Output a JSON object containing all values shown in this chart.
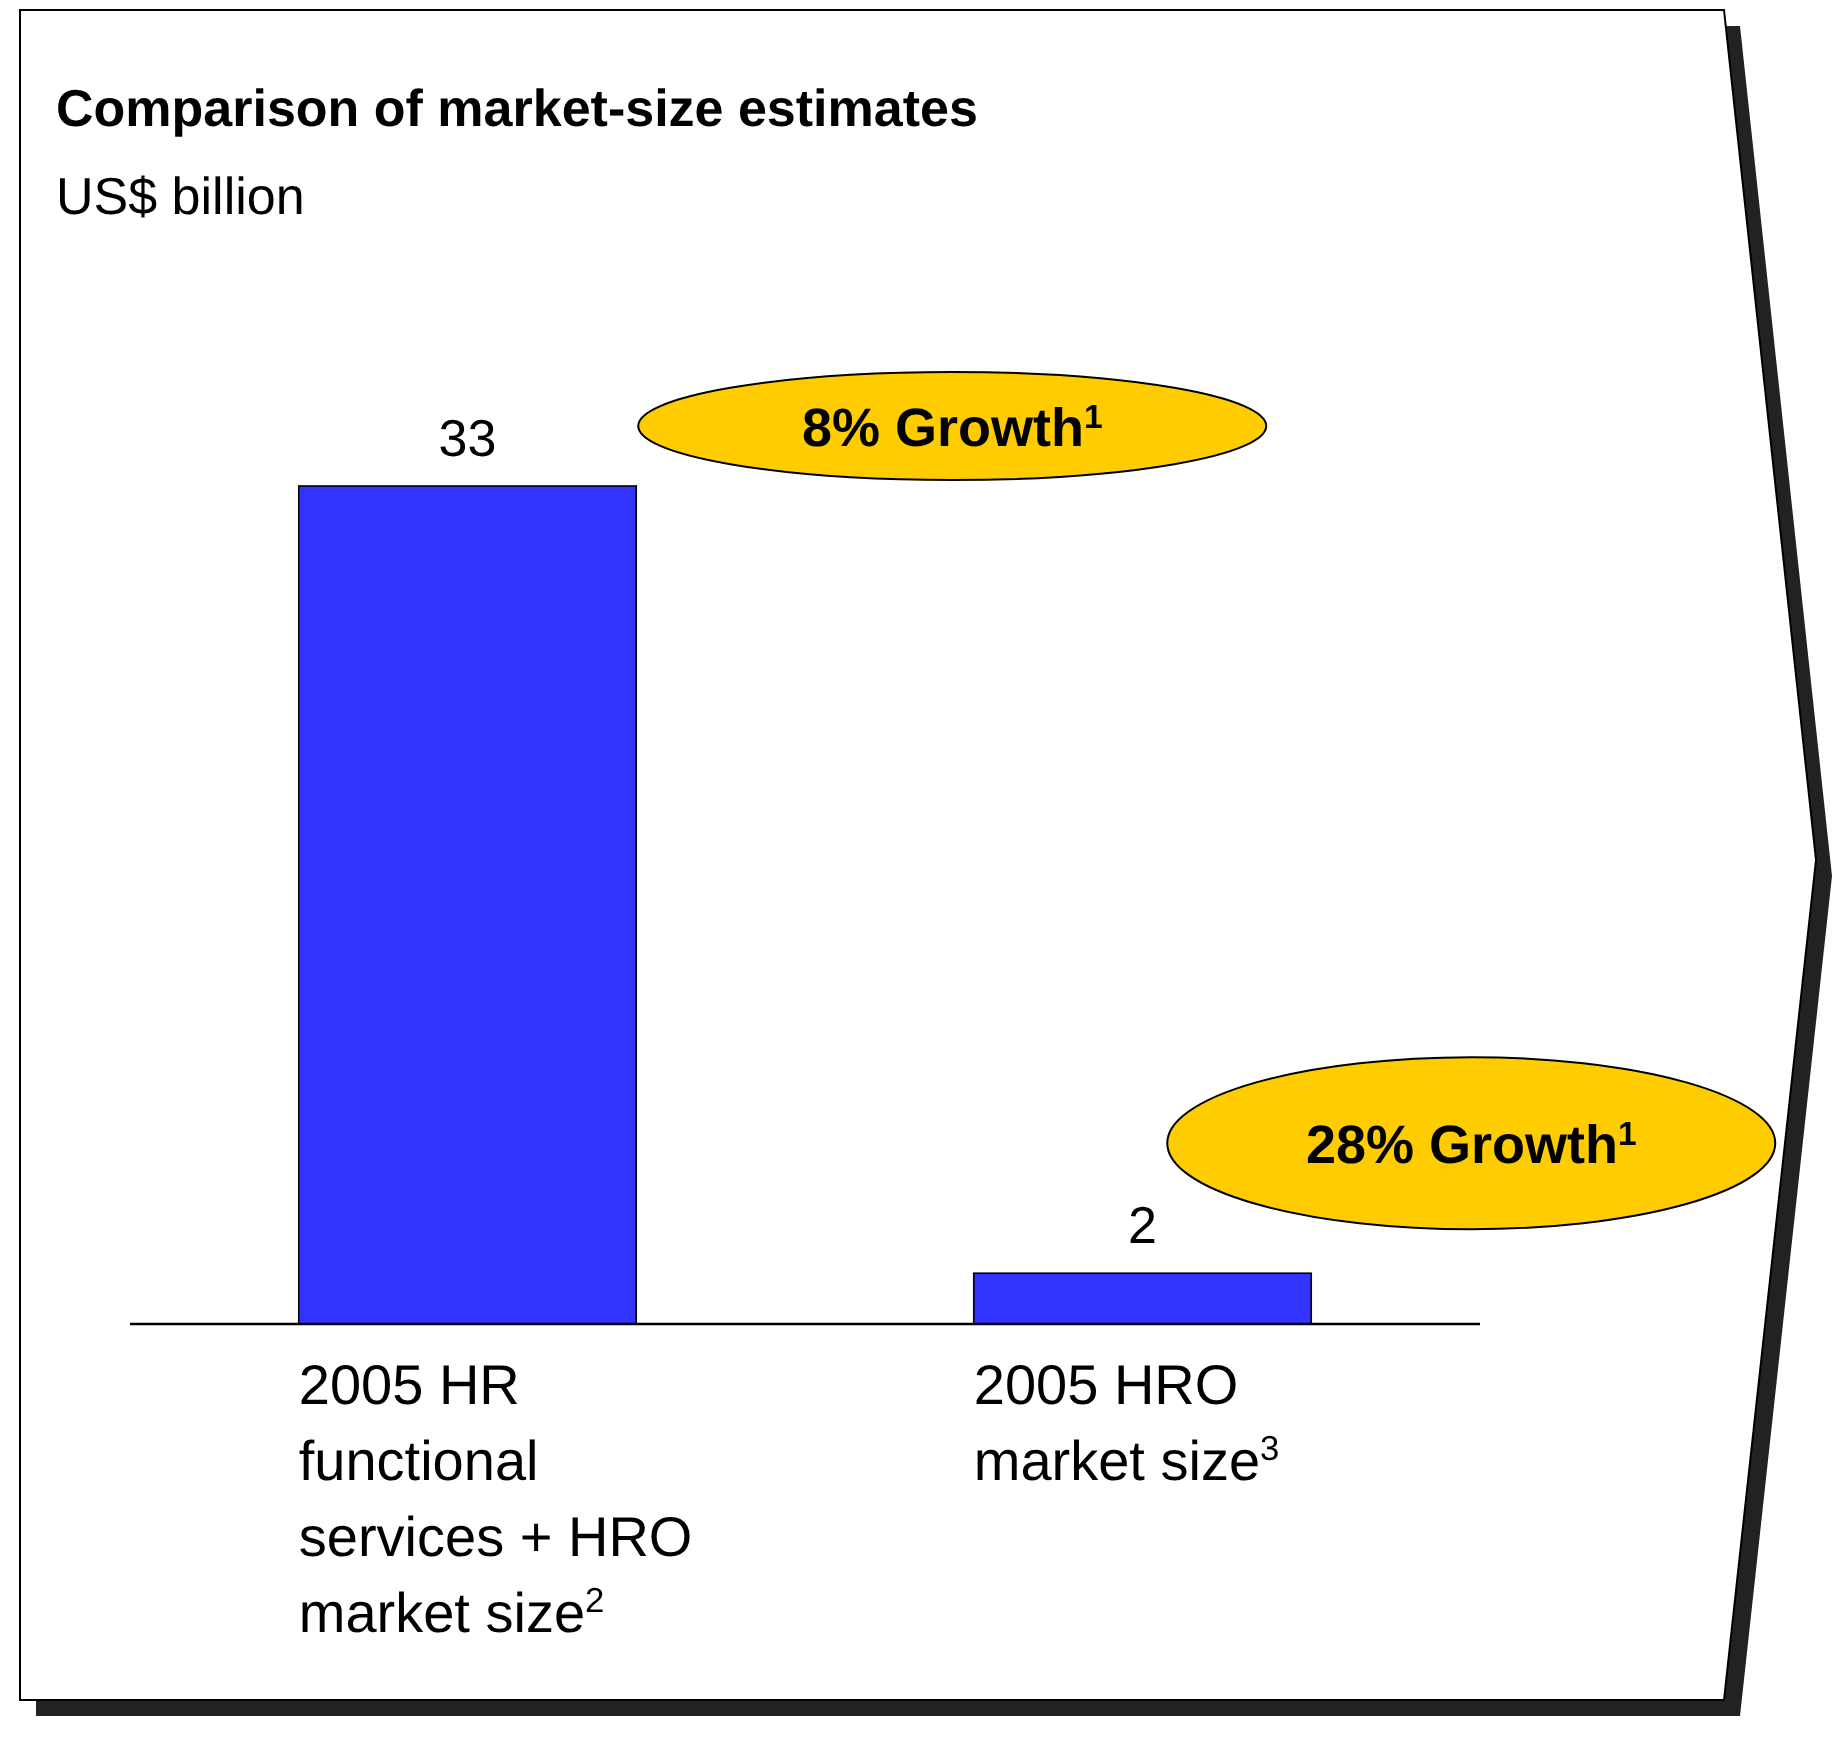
{
  "chart_data": {
    "type": "bar",
    "title": "Comparison of market-size estimates",
    "subtitle": "US$ billion",
    "categories": [
      "2005 HR functional services + HRO market size$^{2}$",
      "2005 HRO market size$^{3}$"
    ],
    "values": [
      33,
      2
    ],
    "color": "#3333ff",
    "data_labels": true,
    "annotations": [
      "8% Growth$^{1}$",
      "28% Growth$^{1}$"
    ]
  }
}
